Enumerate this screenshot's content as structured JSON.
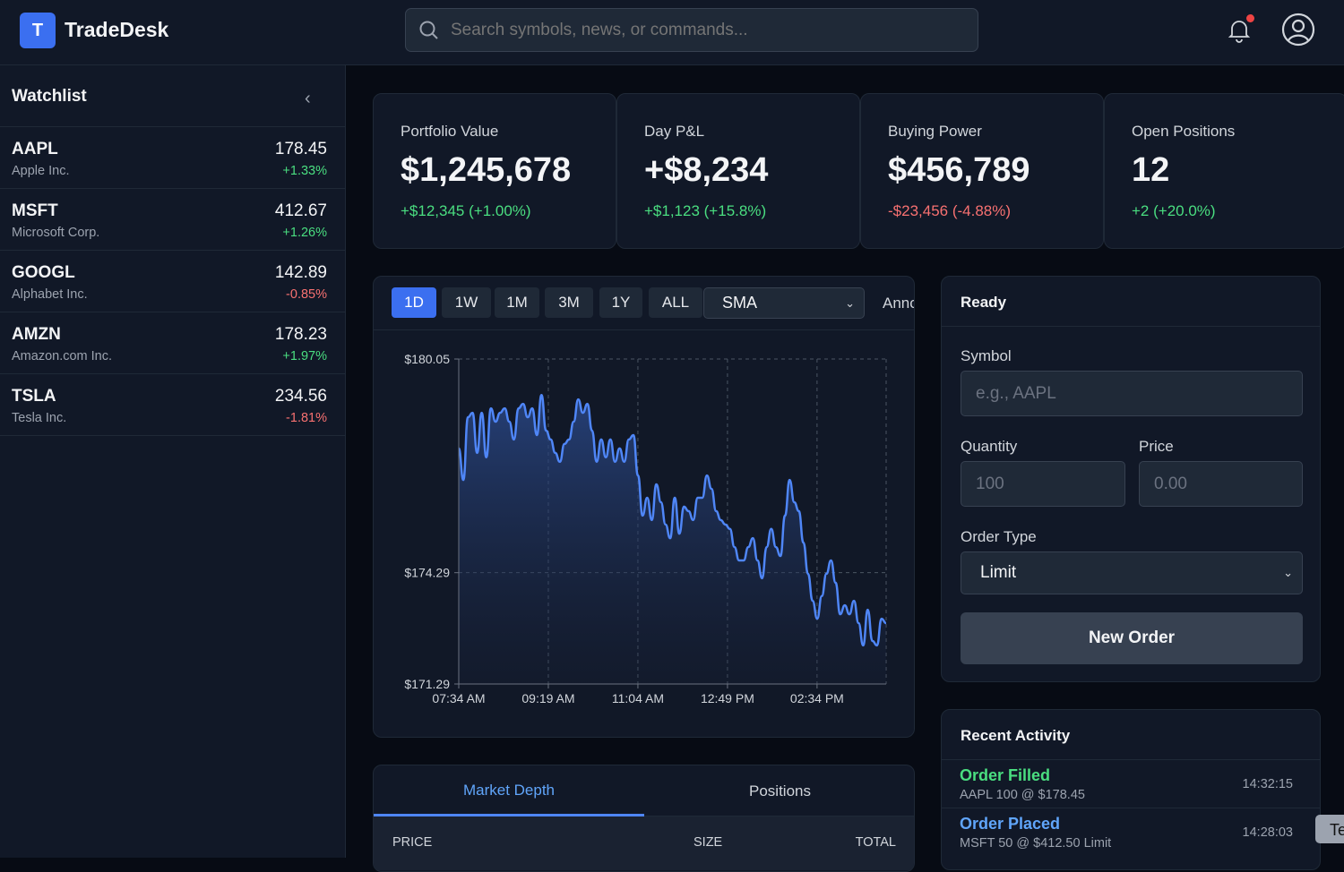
{
  "header": {
    "logo_letter": "T",
    "app_title": "TradeDesk",
    "search_placeholder": "Search symbols, news, or commands...",
    "icons": [
      "search-icon",
      "bell-icon",
      "user-circle-icon"
    ]
  },
  "sidebar": {
    "title": "Watchlist",
    "items": [
      {
        "symbol": "AAPL",
        "name": "Apple Inc.",
        "price": "178.45",
        "change": "+1.33%",
        "dir": "up"
      },
      {
        "symbol": "MSFT",
        "name": "Microsoft Corp.",
        "price": "412.67",
        "change": "+1.26%",
        "dir": "up"
      },
      {
        "symbol": "GOOGL",
        "name": "Alphabet Inc.",
        "price": "142.89",
        "change": "-0.85%",
        "dir": "dn"
      },
      {
        "symbol": "AMZN",
        "name": "Amazon.com Inc.",
        "price": "178.23",
        "change": "+1.97%",
        "dir": "up"
      },
      {
        "symbol": "TSLA",
        "name": "Tesla Inc.",
        "price": "234.56",
        "change": "-1.81%",
        "dir": "dn"
      }
    ]
  },
  "stats": [
    {
      "label": "Portfolio Value",
      "value": "$1,245,678",
      "change": "+$12,345 (+1.00%)",
      "dir": "up"
    },
    {
      "label": "Day P&L",
      "value": "+$8,234",
      "change": "+$1,123 (+15.8%)",
      "dir": "up"
    },
    {
      "label": "Buying Power",
      "value": "$456,789",
      "change": "-$23,456 (-4.88%)",
      "dir": "dn"
    },
    {
      "label": "Open Positions",
      "value": "12",
      "change": "+2 (+20.0%)",
      "dir": "up"
    }
  ],
  "chart_toolbar": {
    "timeframes": [
      "1D",
      "1W",
      "1M",
      "3M",
      "1Y",
      "ALL"
    ],
    "active": "1D",
    "indicator": "SMA",
    "annotate_label": "Anno"
  },
  "chart_data": {
    "type": "area",
    "x_start": "07:34 AM",
    "x_end": "03:55 PM",
    "x_ticks": [
      "07:34 AM",
      "09:19 AM",
      "11:04 AM",
      "12:49 PM",
      "02:34 PM"
    ],
    "y_ticks": [
      "$180.05",
      "$174.29",
      "$171.29"
    ],
    "ylim": [
      171.29,
      180.05
    ],
    "grid": true,
    "line_color": "#4f86f7",
    "values": [
      177.64,
      176.79,
      178.48,
      178.6,
      177.52,
      178.6,
      177.4,
      178.72,
      178.36,
      178.6,
      178.72,
      178.36,
      177.88,
      178.72,
      178.84,
      178.48,
      178.72,
      178.0,
      179.08,
      178.12,
      177.88,
      177.52,
      177.28,
      177.76,
      177.88,
      178.36,
      178.96,
      178.6,
      178.84,
      178.12,
      177.28,
      177.88,
      177.4,
      177.88,
      177.28,
      177.64,
      177.28,
      177.88,
      178.0,
      176.91,
      175.83,
      176.31,
      175.71,
      176.67,
      176.19,
      175.59,
      175.22,
      176.31,
      175.34,
      176.07,
      175.95,
      175.71,
      176.31,
      176.31,
      176.91,
      176.55,
      175.95,
      175.71,
      175.59,
      175.47,
      174.98,
      174.62,
      174.62,
      174.98,
      175.22,
      174.62,
      174.14,
      174.98,
      175.47,
      174.98,
      174.74,
      175.83,
      176.79,
      176.19,
      175.95,
      175.1,
      174.26,
      173.53,
      173.05,
      173.66,
      174.26,
      174.62,
      174.02,
      173.17,
      173.41,
      173.17,
      173.53,
      172.93,
      172.33,
      173.29,
      172.45,
      172.33,
      173.05,
      172.93
    ]
  },
  "order": {
    "status": "Ready",
    "symbol_label": "Symbol",
    "symbol_placeholder": "e.g., AAPL",
    "quantity_label": "Quantity",
    "quantity_placeholder": "100",
    "price_label": "Price",
    "price_placeholder": "0.00",
    "type_label": "Order Type",
    "type_value": "Limit",
    "submit": "New Order"
  },
  "activity": {
    "title": "Recent Activity",
    "items": [
      {
        "title": "Order Filled",
        "detail": "AAPL 100 @ $178.45",
        "time": "14:32:15",
        "color": "#4ade80"
      },
      {
        "title": "Order Placed",
        "detail": "MSFT 50 @ $412.50 Limit",
        "time": "14:28:03",
        "color": "#60a5fa"
      }
    ]
  },
  "depth": {
    "tabs": [
      "Market Depth",
      "Positions"
    ],
    "active": "Market Depth",
    "columns": [
      "PRICE",
      "SIZE",
      "TOTAL"
    ]
  },
  "toast": {
    "text": "Te"
  }
}
